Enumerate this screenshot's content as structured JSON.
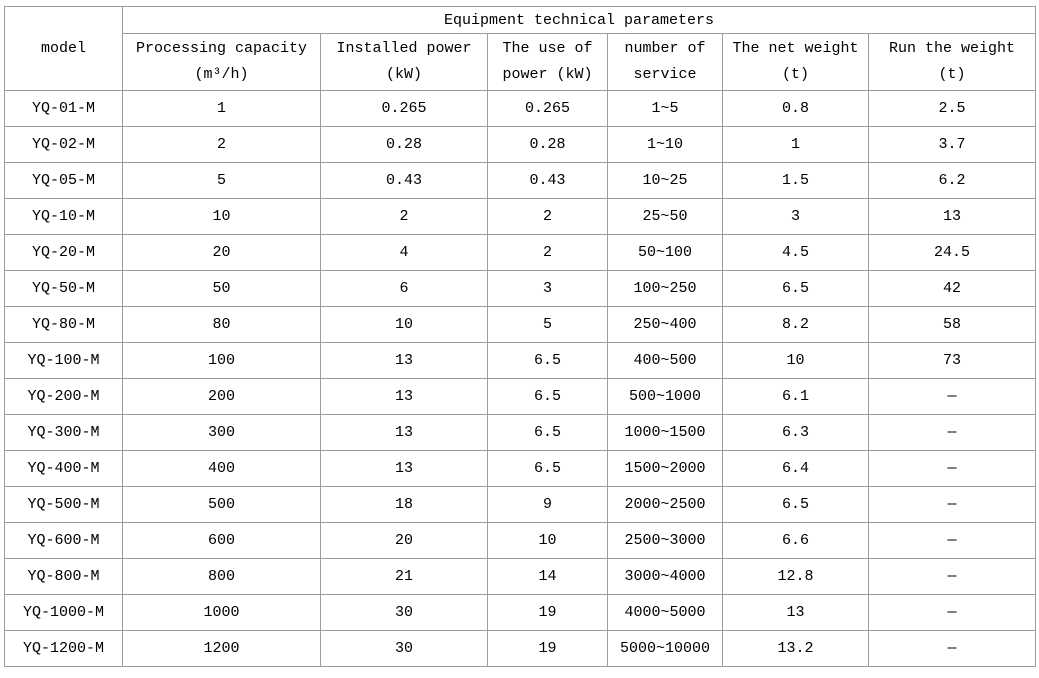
{
  "table": {
    "title": "Equipment technical parameters",
    "model_header": "model",
    "columns": [
      {
        "line1": "Processing capacity",
        "line2": "(m³/h)"
      },
      {
        "line1": "Installed power",
        "line2": "(kW)"
      },
      {
        "line1": "The use of",
        "line2": "power (kW)"
      },
      {
        "line1": "number of",
        "line2": "service"
      },
      {
        "line1": "The net weight",
        "line2": "(t)"
      },
      {
        "line1": "Run the weight",
        "line2": "(t)"
      }
    ],
    "rows": [
      [
        "YQ-01-M",
        "1",
        "0.265",
        "0.265",
        "1~5",
        "0.8",
        "2.5"
      ],
      [
        "YQ-02-M",
        "2",
        "0.28",
        "0.28",
        "1~10",
        "1",
        "3.7"
      ],
      [
        "YQ-05-M",
        "5",
        "0.43",
        "0.43",
        "10~25",
        "1.5",
        "6.2"
      ],
      [
        "YQ-10-M",
        "10",
        "2",
        "2",
        "25~50",
        "3",
        "13"
      ],
      [
        "YQ-20-M",
        "20",
        "4",
        "2",
        "50~100",
        "4.5",
        "24.5"
      ],
      [
        "YQ-50-M",
        "50",
        "6",
        "3",
        "100~250",
        "6.5",
        "42"
      ],
      [
        "YQ-80-M",
        "80",
        "10",
        "5",
        "250~400",
        "8.2",
        "58"
      ],
      [
        "YQ-100-M",
        "100",
        "13",
        "6.5",
        "400~500",
        "10",
        "73"
      ],
      [
        "YQ-200-M",
        "200",
        "13",
        "6.5",
        "500~1000",
        "6.1",
        "—"
      ],
      [
        "YQ-300-M",
        "300",
        "13",
        "6.5",
        "1000~1500",
        "6.3",
        "—"
      ],
      [
        "YQ-400-M",
        "400",
        "13",
        "6.5",
        "1500~2000",
        "6.4",
        "—"
      ],
      [
        "YQ-500-M",
        "500",
        "18",
        "9",
        "2000~2500",
        "6.5",
        "—"
      ],
      [
        "YQ-600-M",
        "600",
        "20",
        "10",
        "2500~3000",
        "6.6",
        "—"
      ],
      [
        "YQ-800-M",
        "800",
        "21",
        "14",
        "3000~4000",
        "12.8",
        "—"
      ],
      [
        "YQ-1000-M",
        "1000",
        "30",
        "19",
        "4000~5000",
        "13",
        "—"
      ],
      [
        "YQ-1200-M",
        "1200",
        "30",
        "19",
        "5000~10000",
        "13.2",
        "—"
      ]
    ]
  }
}
